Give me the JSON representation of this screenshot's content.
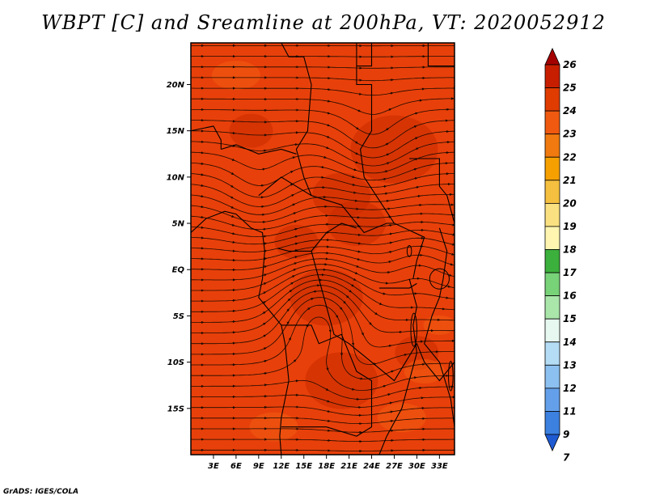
{
  "title": "WBPT [C] and Sreamline at 200hPa, VT: 2020052912",
  "credit": "GrADS: IGES/COLA",
  "map": {
    "lat_range": [
      -20,
      24.5
    ],
    "lon_range": [
      0,
      35
    ],
    "lat_ticks": [
      {
        "value": 20,
        "label": "20N"
      },
      {
        "value": 15,
        "label": "15N"
      },
      {
        "value": 10,
        "label": "10N"
      },
      {
        "value": 5,
        "label": "5N"
      },
      {
        "value": 0,
        "label": "EQ"
      },
      {
        "value": -5,
        "label": "5S"
      },
      {
        "value": -10,
        "label": "10S"
      },
      {
        "value": -15,
        "label": "15S"
      }
    ],
    "lon_ticks": [
      {
        "value": 3,
        "label": "3E"
      },
      {
        "value": 6,
        "label": "6E"
      },
      {
        "value": 9,
        "label": "9E"
      },
      {
        "value": 12,
        "label": "12E"
      },
      {
        "value": 15,
        "label": "15E"
      },
      {
        "value": 18,
        "label": "18E"
      },
      {
        "value": 21,
        "label": "21E"
      },
      {
        "value": 24,
        "label": "24E"
      },
      {
        "value": 27,
        "label": "27E"
      },
      {
        "value": 30,
        "label": "30E"
      },
      {
        "value": 33,
        "label": "33E"
      }
    ],
    "field_colors": {
      "base": "#e8400a",
      "warm": "#c82a00",
      "cool": "#f05a10"
    }
  },
  "colorbar": {
    "labels": [
      "26",
      "25",
      "24",
      "23",
      "22",
      "21",
      "20",
      "19",
      "18",
      "17",
      "16",
      "15",
      "14",
      "13",
      "12",
      "11",
      "9",
      "7"
    ],
    "colors": [
      "#a50000",
      "#c81e00",
      "#e03c00",
      "#f05a10",
      "#f07a10",
      "#f5a000",
      "#f5c040",
      "#fae080",
      "#fff5b0",
      "#3cb03c",
      "#78d278",
      "#aae6aa",
      "#e6f8f0",
      "#b4dcf5",
      "#8cc0f0",
      "#64a0ea",
      "#3c80e0",
      "#1e5ad2"
    ]
  }
}
